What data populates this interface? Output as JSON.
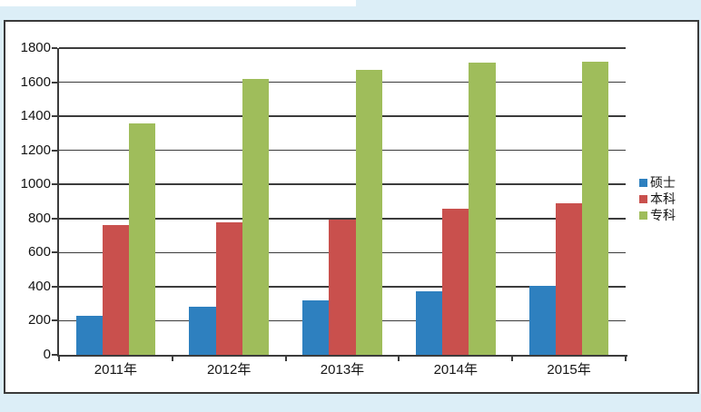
{
  "page": {
    "canvas_background": "#ffffff",
    "panel_background": "#dceef7"
  },
  "chart_frame": {
    "background": "#ffffff",
    "border_color": "#3a3a3a",
    "grid_color": "#3c3c3c",
    "text_color": "#141414"
  },
  "chart_data": {
    "type": "bar",
    "title": "",
    "xlabel": "",
    "ylabel": "",
    "categories": [
      "2011年",
      "2012年",
      "2013年",
      "2014年",
      "2015年"
    ],
    "series": [
      {
        "name": "硕士",
        "color": "#2e80bf",
        "values": [
          230,
          280,
          320,
          375,
          405
        ]
      },
      {
        "name": "本科",
        "color": "#c9504d",
        "values": [
          760,
          775,
          795,
          855,
          890
        ]
      },
      {
        "name": "专科",
        "color": "#9fbd5b",
        "values": [
          1360,
          1620,
          1670,
          1715,
          1720
        ]
      }
    ],
    "ylim": [
      0,
      1800
    ],
    "ytick_interval": 200,
    "ytick_labels": [
      "1800",
      "1600",
      "1400",
      "1200",
      "1000",
      "800",
      "600",
      "400",
      "200",
      "0"
    ],
    "grid": true,
    "legend_position": "right-middle",
    "legend_entries": [
      "硕士",
      "本科",
      "专科"
    ]
  }
}
